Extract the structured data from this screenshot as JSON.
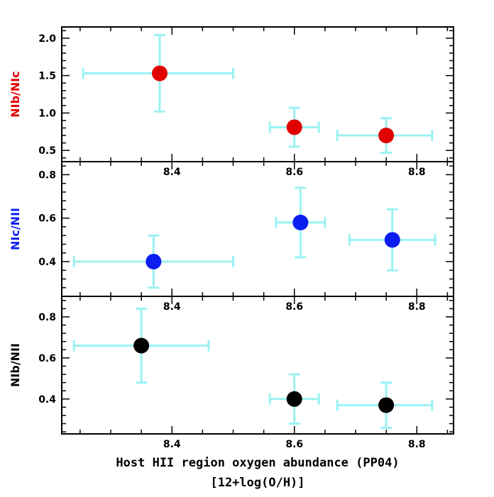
{
  "colors": {
    "errorbar": "#9cf2f2",
    "axes": "#000000",
    "red": "#e00000",
    "blue": "#0a1ef0",
    "black": "#000000"
  },
  "chart_data": {
    "type": "scatter",
    "xlabel": "Host HII region oxygen abundance (PP04)",
    "xlabel_line2": "[12+log(O/H)]",
    "xlim": [
      8.22,
      8.86
    ],
    "xticks": [
      8.4,
      8.6,
      8.8
    ],
    "xtick_labels": [
      "8.4",
      "8.6",
      "8.8"
    ],
    "grid": false,
    "panels": [
      {
        "ylabel": "NIb/NIc",
        "ylabel_color": "#e00000",
        "marker_color": "#e00000",
        "ylim": [
          0.35,
          2.15
        ],
        "yticks": [
          0.5,
          1.0,
          1.5,
          2.0
        ],
        "ytick_labels": [
          "0.5",
          "1.0",
          "1.5",
          "2.0"
        ],
        "points": [
          {
            "x": 8.38,
            "xerr_low": 0.125,
            "xerr_high": 0.12,
            "y": 1.53,
            "yerr_low": 0.51,
            "yerr_high": 0.51
          },
          {
            "x": 8.6,
            "xerr_low": 0.04,
            "xerr_high": 0.04,
            "y": 0.81,
            "yerr_low": 0.26,
            "yerr_high": 0.26
          },
          {
            "x": 8.75,
            "xerr_low": 0.08,
            "xerr_high": 0.075,
            "y": 0.7,
            "yerr_low": 0.23,
            "yerr_high": 0.23
          }
        ]
      },
      {
        "ylabel": "NIc/NII",
        "ylabel_color": "#0a1ef0",
        "marker_color": "#0a1ef0",
        "ylim": [
          0.24,
          0.86
        ],
        "yticks": [
          0.4,
          0.6,
          0.8
        ],
        "ytick_labels": [
          "0.4",
          "0.6",
          "0.8"
        ],
        "points": [
          {
            "x": 8.37,
            "xerr_low": 0.13,
            "xerr_high": 0.13,
            "y": 0.4,
            "yerr_low": 0.12,
            "yerr_high": 0.12
          },
          {
            "x": 8.61,
            "xerr_low": 0.04,
            "xerr_high": 0.04,
            "y": 0.58,
            "yerr_low": 0.16,
            "yerr_high": 0.16
          },
          {
            "x": 8.76,
            "xerr_low": 0.07,
            "xerr_high": 0.07,
            "y": 0.5,
            "yerr_low": 0.14,
            "yerr_high": 0.14
          }
        ]
      },
      {
        "ylabel": "NIb/NII",
        "ylabel_color": "#000000",
        "marker_color": "#000000",
        "ylim": [
          0.23,
          0.9
        ],
        "yticks": [
          0.4,
          0.6,
          0.8
        ],
        "ytick_labels": [
          "0.4",
          "0.6",
          "0.8"
        ],
        "points": [
          {
            "x": 8.35,
            "xerr_low": 0.11,
            "xerr_high": 0.11,
            "y": 0.66,
            "yerr_low": 0.18,
            "yerr_high": 0.18
          },
          {
            "x": 8.6,
            "xerr_low": 0.04,
            "xerr_high": 0.04,
            "y": 0.4,
            "yerr_low": 0.12,
            "yerr_high": 0.12
          },
          {
            "x": 8.75,
            "xerr_low": 0.08,
            "xerr_high": 0.075,
            "y": 0.37,
            "yerr_low": 0.11,
            "yerr_high": 0.11
          }
        ]
      }
    ]
  }
}
